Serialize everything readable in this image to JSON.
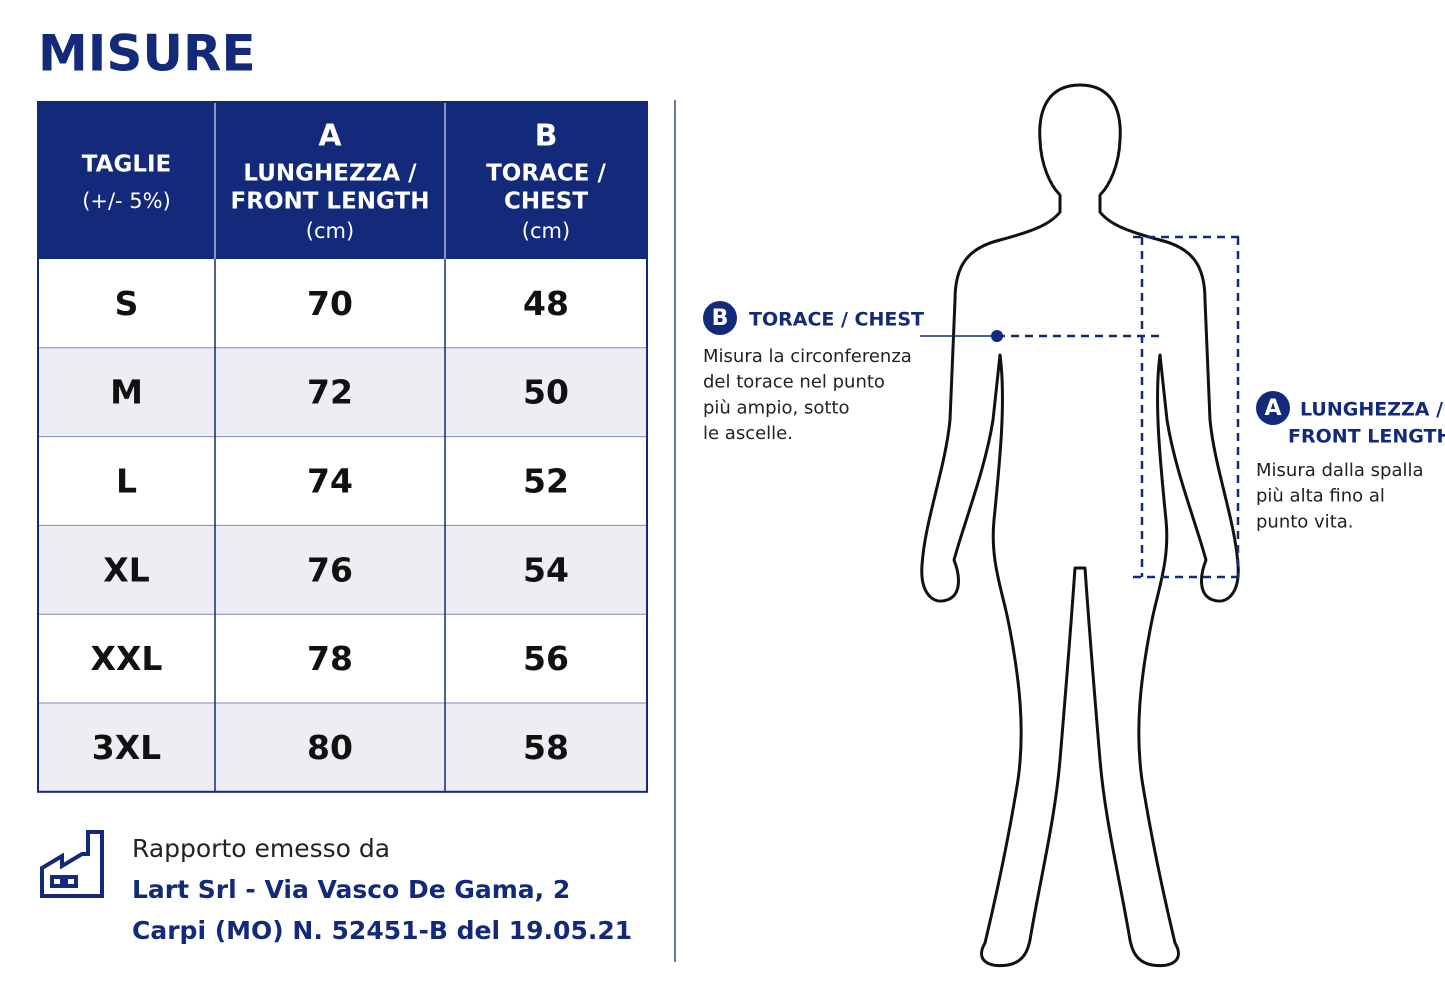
{
  "title": "MISURE",
  "table": {
    "headers": [
      [
        "TAGLIE",
        "(+/- 5%)"
      ],
      [
        "A",
        "LUNGHEZZA /",
        "FRONT LENGTH",
        "(cm)"
      ],
      [
        "B",
        "TORACE /",
        "CHEST",
        "(cm)"
      ]
    ],
    "rows": [
      [
        "S",
        70,
        48
      ],
      [
        "M",
        72,
        50
      ],
      [
        "L",
        74,
        52
      ],
      [
        "XL",
        76,
        54
      ],
      [
        "XXL",
        78,
        56
      ],
      [
        "3XL",
        80,
        58
      ]
    ]
  },
  "footer": {
    "lines": [
      "Rapporto emesso da",
      "Lart Srl - Via Vasco De Gama, 2",
      "Carpi (MO) N. 52451-B del 19.05.21"
    ]
  },
  "annotations": {
    "chest": {
      "badge": "B",
      "label": [
        "TORACE / CHEST"
      ],
      "description": [
        "Misura la circonferenza",
        "del torace nel punto",
        "più ampio, sotto",
        "le ascelle."
      ]
    },
    "length": {
      "badge": "A",
      "label": [
        "LUNGHEZZA /",
        "FRONT LENGTH"
      ],
      "description": [
        "Misura dalla spalla",
        "più alta fino al",
        "punto vita."
      ]
    }
  }
}
